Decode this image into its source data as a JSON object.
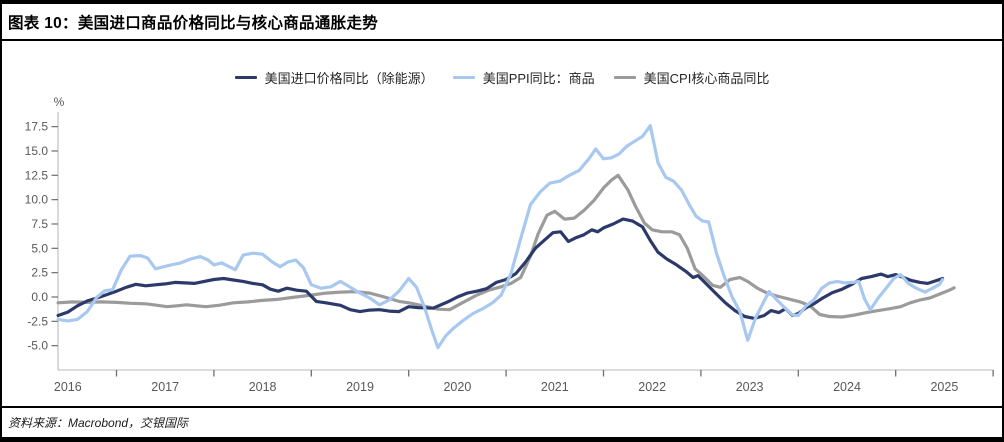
{
  "header": {
    "title": "图表 10：美国进口商品价格同比与核心商品通胀走势"
  },
  "footer": {
    "source": "资料来源：Macrobond，交银国际"
  },
  "colors": {
    "frame_rule": "#000000",
    "axis_line": "#c6c6c6",
    "tick_mark": "#6e6e6e",
    "tick_label": "#595959",
    "navy": "#2b3a6b",
    "light_blue": "#a8c8f0",
    "gray": "#9b9b9b"
  },
  "chart_data": {
    "type": "line",
    "title": "图表 10：美国进口商品价格同比与核心商品通胀走势",
    "legend_position": "top-center",
    "grid": false,
    "x_axis": {
      "labels": [
        "2016",
        "2017",
        "2018",
        "2019",
        "2020",
        "2021",
        "2022",
        "2023",
        "2024",
        "2025"
      ],
      "tick_interval": "year"
    },
    "y_axis": {
      "unit": "%",
      "ticks": [
        "17.5",
        "15.0",
        "12.5",
        "10.0",
        "7.5",
        "5.0",
        "2.5",
        "0.0",
        "-2.5",
        "-5.0"
      ],
      "range": [
        -7.5,
        19.0
      ]
    },
    "series": [
      {
        "name": "美国CPI核心商品同比",
        "legend_order": 3,
        "color": "#9b9b9b",
        "points": [
          [
            2016.4,
            -0.6
          ],
          [
            2016.55,
            -0.5
          ],
          [
            2016.7,
            -0.55
          ],
          [
            2016.85,
            -0.5
          ],
          [
            2017.0,
            -0.55
          ],
          [
            2017.15,
            -0.65
          ],
          [
            2017.3,
            -0.7
          ],
          [
            2017.42,
            -0.85
          ],
          [
            2017.52,
            -1.0
          ],
          [
            2017.62,
            -0.9
          ],
          [
            2017.72,
            -0.8
          ],
          [
            2017.82,
            -0.9
          ],
          [
            2017.92,
            -1.0
          ],
          [
            2018.05,
            -0.85
          ],
          [
            2018.2,
            -0.6
          ],
          [
            2018.35,
            -0.5
          ],
          [
            2018.5,
            -0.35
          ],
          [
            2018.65,
            -0.25
          ],
          [
            2018.8,
            -0.05
          ],
          [
            2019.0,
            0.2
          ],
          [
            2019.15,
            0.4
          ],
          [
            2019.3,
            0.5
          ],
          [
            2019.45,
            0.55
          ],
          [
            2019.6,
            0.4
          ],
          [
            2019.75,
            0.0
          ],
          [
            2019.9,
            -0.45
          ],
          [
            2020.0,
            -0.6
          ],
          [
            2020.15,
            -0.9
          ],
          [
            2020.3,
            -1.25
          ],
          [
            2020.42,
            -1.3
          ],
          [
            2020.55,
            -0.6
          ],
          [
            2020.7,
            0.2
          ],
          [
            2020.82,
            0.7
          ],
          [
            2020.95,
            1.05
          ],
          [
            2021.05,
            1.4
          ],
          [
            2021.15,
            2.0
          ],
          [
            2021.25,
            4.2
          ],
          [
            2021.33,
            6.5
          ],
          [
            2021.42,
            8.4
          ],
          [
            2021.5,
            8.8
          ],
          [
            2021.6,
            8.0
          ],
          [
            2021.7,
            8.1
          ],
          [
            2021.8,
            8.9
          ],
          [
            2021.9,
            9.9
          ],
          [
            2022.0,
            11.2
          ],
          [
            2022.08,
            12.0
          ],
          [
            2022.15,
            12.5
          ],
          [
            2022.25,
            11.0
          ],
          [
            2022.33,
            9.3
          ],
          [
            2022.42,
            7.6
          ],
          [
            2022.5,
            6.9
          ],
          [
            2022.6,
            6.7
          ],
          [
            2022.7,
            6.7
          ],
          [
            2022.78,
            6.4
          ],
          [
            2022.86,
            5.0
          ],
          [
            2022.94,
            2.9
          ],
          [
            2023.02,
            2.2
          ],
          [
            2023.12,
            1.2
          ],
          [
            2023.2,
            1.0
          ],
          [
            2023.3,
            1.8
          ],
          [
            2023.4,
            2.0
          ],
          [
            2023.48,
            1.6
          ],
          [
            2023.58,
            0.9
          ],
          [
            2023.68,
            0.4
          ],
          [
            2023.8,
            0.05
          ],
          [
            2023.92,
            -0.25
          ],
          [
            2024.02,
            -0.5
          ],
          [
            2024.12,
            -0.9
          ],
          [
            2024.22,
            -1.8
          ],
          [
            2024.32,
            -2.0
          ],
          [
            2024.45,
            -2.05
          ],
          [
            2024.58,
            -1.85
          ],
          [
            2024.7,
            -1.6
          ],
          [
            2024.82,
            -1.4
          ],
          [
            2024.94,
            -1.2
          ],
          [
            2025.05,
            -1.0
          ],
          [
            2025.15,
            -0.6
          ],
          [
            2025.25,
            -0.3
          ],
          [
            2025.35,
            -0.1
          ],
          [
            2025.45,
            0.3
          ],
          [
            2025.55,
            0.7
          ],
          [
            2025.6,
            0.95
          ]
        ]
      },
      {
        "name": "美国进口价格同比（除能源）",
        "legend_order": 1,
        "color": "#2b3a6b",
        "points": [
          [
            2016.4,
            -1.9
          ],
          [
            2016.5,
            -1.55
          ],
          [
            2016.6,
            -0.9
          ],
          [
            2016.7,
            -0.4
          ],
          [
            2016.8,
            -0.1
          ],
          [
            2016.9,
            0.25
          ],
          [
            2017.0,
            0.6
          ],
          [
            2017.1,
            1.0
          ],
          [
            2017.2,
            1.3
          ],
          [
            2017.3,
            1.15
          ],
          [
            2017.4,
            1.25
          ],
          [
            2017.5,
            1.35
          ],
          [
            2017.6,
            1.5
          ],
          [
            2017.7,
            1.45
          ],
          [
            2017.8,
            1.4
          ],
          [
            2017.9,
            1.6
          ],
          [
            2018.0,
            1.8
          ],
          [
            2018.1,
            1.9
          ],
          [
            2018.2,
            1.75
          ],
          [
            2018.3,
            1.6
          ],
          [
            2018.4,
            1.4
          ],
          [
            2018.5,
            1.25
          ],
          [
            2018.58,
            0.8
          ],
          [
            2018.66,
            0.6
          ],
          [
            2018.75,
            0.9
          ],
          [
            2018.85,
            0.7
          ],
          [
            2018.95,
            0.6
          ],
          [
            2019.05,
            -0.45
          ],
          [
            2019.15,
            -0.6
          ],
          [
            2019.3,
            -0.85
          ],
          [
            2019.4,
            -1.3
          ],
          [
            2019.5,
            -1.5
          ],
          [
            2019.6,
            -1.35
          ],
          [
            2019.7,
            -1.3
          ],
          [
            2019.8,
            -1.45
          ],
          [
            2019.9,
            -1.5
          ],
          [
            2020.0,
            -1.0
          ],
          [
            2020.1,
            -1.1
          ],
          [
            2020.25,
            -1.15
          ],
          [
            2020.4,
            -0.5
          ],
          [
            2020.5,
            0.0
          ],
          [
            2020.6,
            0.4
          ],
          [
            2020.7,
            0.6
          ],
          [
            2020.8,
            0.85
          ],
          [
            2020.9,
            1.5
          ],
          [
            2021.0,
            1.8
          ],
          [
            2021.1,
            2.4
          ],
          [
            2021.2,
            3.6
          ],
          [
            2021.3,
            5.0
          ],
          [
            2021.4,
            5.9
          ],
          [
            2021.48,
            6.6
          ],
          [
            2021.56,
            6.7
          ],
          [
            2021.64,
            5.7
          ],
          [
            2021.72,
            6.1
          ],
          [
            2021.8,
            6.4
          ],
          [
            2021.88,
            6.9
          ],
          [
            2021.94,
            6.7
          ],
          [
            2022.0,
            7.1
          ],
          [
            2022.1,
            7.5
          ],
          [
            2022.2,
            8.0
          ],
          [
            2022.3,
            7.8
          ],
          [
            2022.4,
            7.2
          ],
          [
            2022.48,
            5.8
          ],
          [
            2022.56,
            4.6
          ],
          [
            2022.65,
            3.9
          ],
          [
            2022.75,
            3.3
          ],
          [
            2022.85,
            2.6
          ],
          [
            2022.92,
            2.0
          ],
          [
            2022.97,
            2.2
          ],
          [
            2023.05,
            1.4
          ],
          [
            2023.15,
            0.4
          ],
          [
            2023.25,
            -0.6
          ],
          [
            2023.35,
            -1.4
          ],
          [
            2023.45,
            -2.0
          ],
          [
            2023.55,
            -2.2
          ],
          [
            2023.65,
            -1.9
          ],
          [
            2023.72,
            -1.4
          ],
          [
            2023.8,
            -1.6
          ],
          [
            2023.87,
            -1.2
          ],
          [
            2023.94,
            -1.9
          ],
          [
            2024.0,
            -1.7
          ],
          [
            2024.08,
            -1.1
          ],
          [
            2024.16,
            -0.7
          ],
          [
            2024.25,
            -0.1
          ],
          [
            2024.35,
            0.45
          ],
          [
            2024.45,
            0.8
          ],
          [
            2024.55,
            1.3
          ],
          [
            2024.65,
            1.9
          ],
          [
            2024.75,
            2.1
          ],
          [
            2024.85,
            2.35
          ],
          [
            2024.92,
            2.1
          ],
          [
            2025.0,
            2.3
          ],
          [
            2025.08,
            2.0
          ],
          [
            2025.16,
            1.7
          ],
          [
            2025.25,
            1.5
          ],
          [
            2025.33,
            1.4
          ],
          [
            2025.42,
            1.7
          ],
          [
            2025.48,
            1.9
          ]
        ]
      },
      {
        "name": "美国PPI同比：商品",
        "legend_order": 2,
        "color": "#a8c8f0",
        "points": [
          [
            2016.4,
            -2.3
          ],
          [
            2016.5,
            -2.45
          ],
          [
            2016.6,
            -2.3
          ],
          [
            2016.7,
            -1.5
          ],
          [
            2016.8,
            0.0
          ],
          [
            2016.88,
            0.65
          ],
          [
            2016.96,
            0.75
          ],
          [
            2017.05,
            2.8
          ],
          [
            2017.14,
            4.2
          ],
          [
            2017.25,
            4.25
          ],
          [
            2017.32,
            4.0
          ],
          [
            2017.4,
            2.9
          ],
          [
            2017.48,
            3.1
          ],
          [
            2017.56,
            3.3
          ],
          [
            2017.66,
            3.5
          ],
          [
            2017.76,
            3.9
          ],
          [
            2017.86,
            4.15
          ],
          [
            2017.94,
            3.8
          ],
          [
            2018.0,
            3.3
          ],
          [
            2018.08,
            3.5
          ],
          [
            2018.16,
            3.1
          ],
          [
            2018.22,
            2.8
          ],
          [
            2018.3,
            4.3
          ],
          [
            2018.4,
            4.5
          ],
          [
            2018.5,
            4.4
          ],
          [
            2018.6,
            3.6
          ],
          [
            2018.68,
            3.1
          ],
          [
            2018.76,
            3.6
          ],
          [
            2018.84,
            3.8
          ],
          [
            2018.92,
            3.0
          ],
          [
            2019.0,
            1.25
          ],
          [
            2019.1,
            0.9
          ],
          [
            2019.2,
            1.05
          ],
          [
            2019.3,
            1.6
          ],
          [
            2019.4,
            1.0
          ],
          [
            2019.5,
            0.4
          ],
          [
            2019.6,
            -0.1
          ],
          [
            2019.7,
            -0.8
          ],
          [
            2019.8,
            -0.3
          ],
          [
            2019.9,
            0.6
          ],
          [
            2020.0,
            1.9
          ],
          [
            2020.08,
            1.0
          ],
          [
            2020.16,
            -1.0
          ],
          [
            2020.24,
            -3.5
          ],
          [
            2020.3,
            -5.2
          ],
          [
            2020.38,
            -4.0
          ],
          [
            2020.46,
            -3.2
          ],
          [
            2020.56,
            -2.4
          ],
          [
            2020.66,
            -1.7
          ],
          [
            2020.76,
            -1.2
          ],
          [
            2020.86,
            -0.6
          ],
          [
            2020.95,
            0.2
          ],
          [
            2021.05,
            2.4
          ],
          [
            2021.15,
            6.0
          ],
          [
            2021.25,
            9.5
          ],
          [
            2021.35,
            10.8
          ],
          [
            2021.45,
            11.7
          ],
          [
            2021.55,
            11.9
          ],
          [
            2021.65,
            12.5
          ],
          [
            2021.75,
            13.0
          ],
          [
            2021.85,
            14.2
          ],
          [
            2021.92,
            15.2
          ],
          [
            2022.0,
            14.2
          ],
          [
            2022.08,
            14.3
          ],
          [
            2022.16,
            14.7
          ],
          [
            2022.24,
            15.5
          ],
          [
            2022.32,
            16.0
          ],
          [
            2022.4,
            16.5
          ],
          [
            2022.48,
            17.6
          ],
          [
            2022.56,
            13.8
          ],
          [
            2022.64,
            12.3
          ],
          [
            2022.72,
            11.9
          ],
          [
            2022.8,
            11.0
          ],
          [
            2022.88,
            9.5
          ],
          [
            2022.95,
            8.3
          ],
          [
            2023.02,
            7.8
          ],
          [
            2023.08,
            7.7
          ],
          [
            2023.16,
            4.5
          ],
          [
            2023.24,
            2.1
          ],
          [
            2023.32,
            0.0
          ],
          [
            2023.4,
            -1.5
          ],
          [
            2023.48,
            -4.45
          ],
          [
            2023.56,
            -2.2
          ],
          [
            2023.64,
            -0.6
          ],
          [
            2023.7,
            0.55
          ],
          [
            2023.78,
            -0.3
          ],
          [
            2023.86,
            -1.1
          ],
          [
            2023.94,
            -1.85
          ],
          [
            2024.0,
            -1.9
          ],
          [
            2024.08,
            -0.9
          ],
          [
            2024.16,
            -0.3
          ],
          [
            2024.24,
            0.9
          ],
          [
            2024.32,
            1.45
          ],
          [
            2024.4,
            1.6
          ],
          [
            2024.48,
            1.45
          ],
          [
            2024.56,
            1.5
          ],
          [
            2024.62,
            1.6
          ],
          [
            2024.68,
            -0.2
          ],
          [
            2024.74,
            -1.3
          ],
          [
            2024.82,
            -0.1
          ],
          [
            2024.9,
            0.9
          ],
          [
            2024.98,
            1.9
          ],
          [
            2025.05,
            2.3
          ],
          [
            2025.13,
            1.4
          ],
          [
            2025.21,
            0.9
          ],
          [
            2025.3,
            0.5
          ],
          [
            2025.38,
            0.9
          ],
          [
            2025.45,
            1.3
          ],
          [
            2025.48,
            1.8
          ]
        ]
      }
    ]
  }
}
